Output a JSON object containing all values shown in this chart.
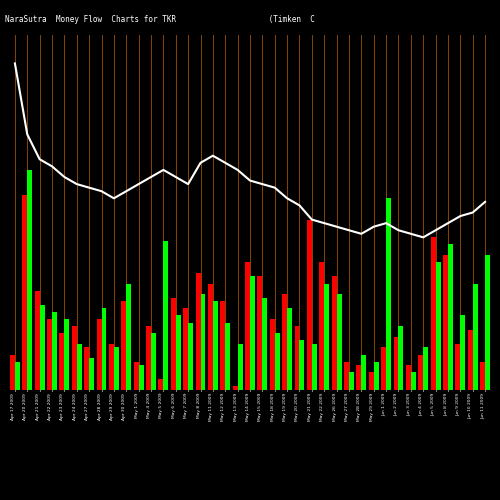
{
  "title": "NaraSutra  Money Flow  Charts for TKR                    (Timken  C                                                      ompany",
  "background_color": "#000000",
  "grid_color": "#8B4500",
  "line_color": "#ffffff",
  "bar_data": [
    {
      "red": 0.1,
      "green": 0.08
    },
    {
      "red": 0.55,
      "green": 0.62
    },
    {
      "red": 0.28,
      "green": 0.24
    },
    {
      "red": 0.2,
      "green": 0.22
    },
    {
      "red": 0.16,
      "green": 0.2
    },
    {
      "red": 0.18,
      "green": 0.13
    },
    {
      "red": 0.12,
      "green": 0.09
    },
    {
      "red": 0.2,
      "green": 0.23
    },
    {
      "red": 0.13,
      "green": 0.12
    },
    {
      "red": 0.25,
      "green": 0.3
    },
    {
      "red": 0.08,
      "green": 0.07
    },
    {
      "red": 0.18,
      "green": 0.16
    },
    {
      "red": 0.03,
      "green": 0.42
    },
    {
      "red": 0.26,
      "green": 0.21
    },
    {
      "red": 0.23,
      "green": 0.19
    },
    {
      "red": 0.33,
      "green": 0.27
    },
    {
      "red": 0.3,
      "green": 0.25
    },
    {
      "red": 0.25,
      "green": 0.19
    },
    {
      "red": 0.01,
      "green": 0.13
    },
    {
      "red": 0.36,
      "green": 0.32
    },
    {
      "red": 0.32,
      "green": 0.26
    },
    {
      "red": 0.2,
      "green": 0.16
    },
    {
      "red": 0.27,
      "green": 0.23
    },
    {
      "red": 0.18,
      "green": 0.14
    },
    {
      "red": 0.48,
      "green": 0.13
    },
    {
      "red": 0.36,
      "green": 0.3
    },
    {
      "red": 0.32,
      "green": 0.27
    },
    {
      "red": 0.08,
      "green": 0.05
    },
    {
      "red": 0.07,
      "green": 0.1
    },
    {
      "red": 0.05,
      "green": 0.08
    },
    {
      "red": 0.12,
      "green": 0.54
    },
    {
      "red": 0.15,
      "green": 0.18
    },
    {
      "red": 0.07,
      "green": 0.05
    },
    {
      "red": 0.1,
      "green": 0.12
    },
    {
      "red": 0.43,
      "green": 0.36
    },
    {
      "red": 0.38,
      "green": 0.41
    },
    {
      "red": 0.13,
      "green": 0.21
    },
    {
      "red": 0.17,
      "green": 0.3
    },
    {
      "red": 0.08,
      "green": 0.38
    }
  ],
  "line_data": [
    0.92,
    0.72,
    0.65,
    0.63,
    0.6,
    0.58,
    0.57,
    0.56,
    0.54,
    0.56,
    0.58,
    0.6,
    0.62,
    0.6,
    0.58,
    0.64,
    0.66,
    0.64,
    0.62,
    0.59,
    0.58,
    0.57,
    0.54,
    0.52,
    0.48,
    0.47,
    0.46,
    0.45,
    0.44,
    0.46,
    0.47,
    0.45,
    0.44,
    0.43,
    0.45,
    0.47,
    0.49,
    0.5,
    0.53
  ],
  "x_labels": [
    "Apr 17 2009",
    "Apr 20 2009",
    "Apr 21 2009",
    "Apr 22 2009",
    "Apr 23 2009",
    "Apr 24 2009",
    "Apr 27 2009",
    "Apr 28 2009",
    "Apr 29 2009",
    "Apr 30 2009",
    "May 1 2009",
    "May 4 2009",
    "May 5 2009",
    "May 6 2009",
    "May 7 2009",
    "May 8 2009",
    "May 11 2009",
    "May 12 2009",
    "May 13 2009",
    "May 14 2009",
    "May 15 2009",
    "May 18 2009",
    "May 19 2009",
    "May 20 2009",
    "May 21 2009",
    "May 22 2009",
    "May 26 2009",
    "May 27 2009",
    "May 28 2009",
    "May 29 2009",
    "Jun 1 2009",
    "Jun 2 2009",
    "Jun 3 2009",
    "Jun 4 2009",
    "Jun 5 2009",
    "Jun 8 2009",
    "Jun 9 2009",
    "Jun 10 2009",
    "Jun 11 2009"
  ],
  "ylim": [
    0,
    1.0
  ],
  "figsize": [
    5.0,
    5.0
  ],
  "dpi": 100
}
